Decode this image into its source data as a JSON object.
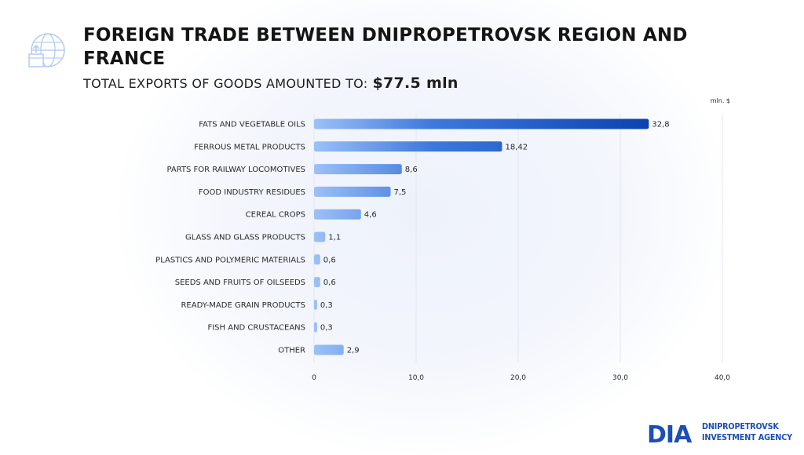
{
  "header": {
    "title": "FOREIGN TRADE BETWEEN DNIPROPETROVSK REGION AND FRANCE",
    "subtitle_label": "TOTAL EXPORTS OF GOODS AMOUNTED TO:",
    "subtitle_value": "$77.5 mln",
    "icon": "globe-box-export-icon"
  },
  "chart_data": {
    "type": "bar",
    "orientation": "horizontal",
    "unit_label": "mln. $",
    "categories": [
      "FATS AND VEGETABLE OILS",
      "FERROUS METAL PRODUCTS",
      "PARTS FOR RAILWAY LOCOMOTIVES",
      "FOOD INDUSTRY RESIDUES",
      "CEREAL CROPS",
      "GLASS AND GLASS PRODUCTS",
      "PLASTICS AND POLYMERIC MATERIALS",
      "SEEDS AND FRUITS OF OILSEEDS",
      "READY-MADE GRAIN PRODUCTS",
      "FISH AND CRUSTACEANS",
      "OTHER"
    ],
    "values": [
      32.8,
      18.42,
      8.6,
      7.5,
      4.6,
      1.1,
      0.6,
      0.6,
      0.3,
      0.3,
      2.9
    ],
    "value_labels": [
      "32,8",
      "18,42",
      "8,6",
      "7,5",
      "4,6",
      "1,1",
      "0,6",
      "0,6",
      "0,3",
      "0,3",
      "2,9"
    ],
    "xlim": [
      0,
      40
    ],
    "xticks": [
      0,
      10,
      20,
      30,
      40
    ],
    "xtick_labels": [
      "0",
      "10,0",
      "20,0",
      "30,0",
      "40,0"
    ],
    "grid": true,
    "colors": {
      "bar_start": "#9cc0f7",
      "bar_end": "#0b43b0",
      "grid": "#e3e7ef",
      "text": "#2a2a2a"
    }
  },
  "logo": {
    "mark": "DIA",
    "line1": "DNIPROPETROVSK",
    "line2": "INVESTMENT AGENCY",
    "color": "#1b4fb5"
  }
}
